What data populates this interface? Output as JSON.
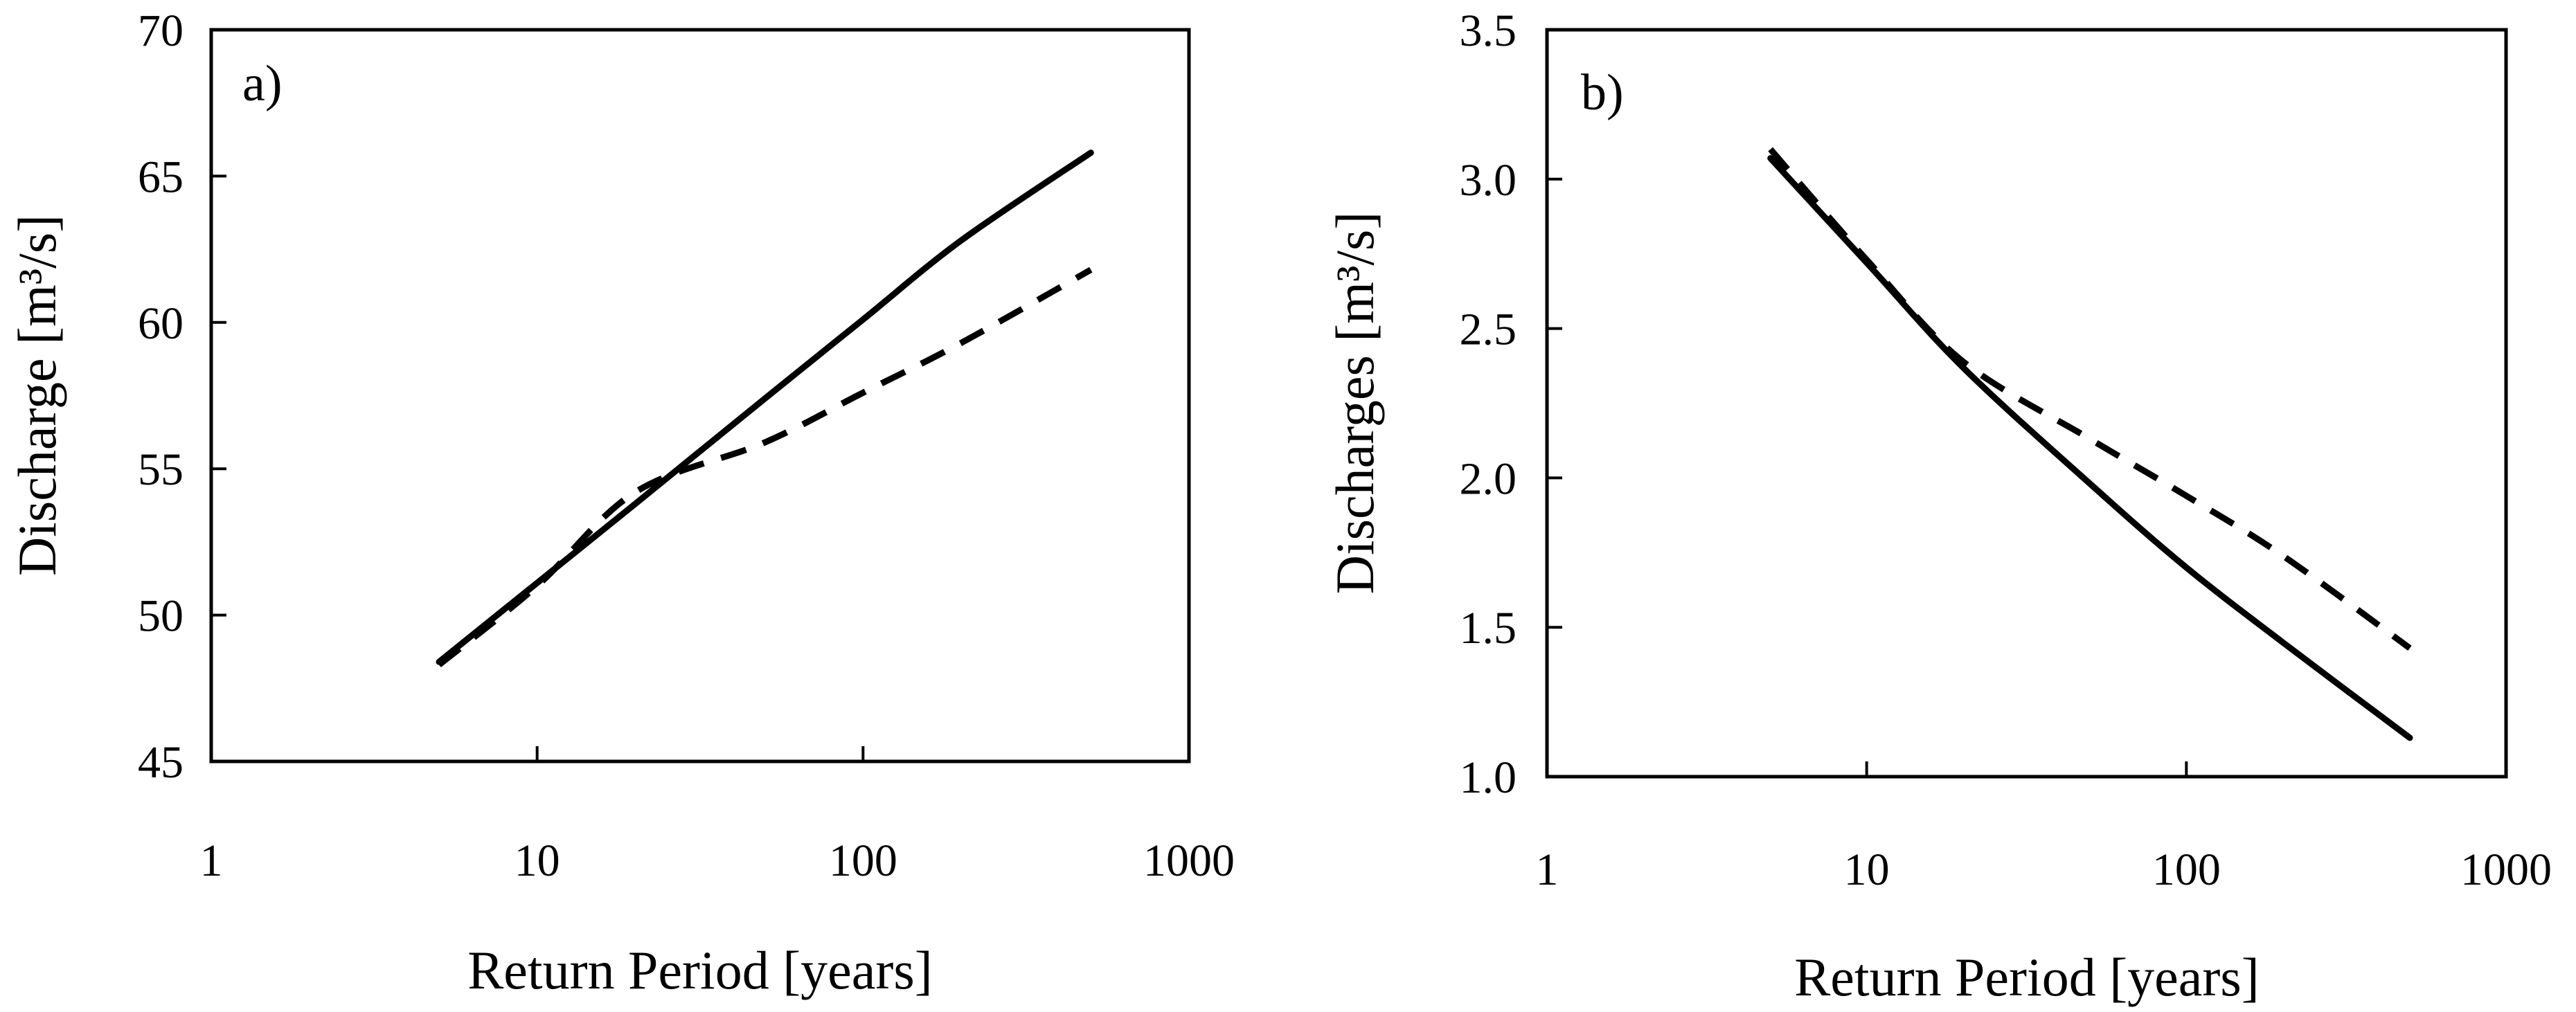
{
  "chart_data": [
    {
      "type": "line",
      "panel_label": "a)",
      "xlabel": "Return Period [years]",
      "ylabel": "Discharge [m³/s]",
      "xscale": "log",
      "xlim": [
        1,
        1000
      ],
      "ylim": [
        45,
        70
      ],
      "x_ticks": [
        1,
        10,
        100,
        1000
      ],
      "x_tick_labels": [
        "1",
        "10",
        "100",
        "1000"
      ],
      "y_ticks": [
        45,
        50,
        55,
        60,
        65,
        70
      ],
      "y_tick_labels": [
        "45",
        "50",
        "55",
        "60",
        "65",
        "70"
      ],
      "grid": false,
      "legend": "none",
      "series": [
        {
          "style": "solid",
          "color": "#000000",
          "x": [
            5,
            10,
            20,
            50,
            100,
            200,
            500
          ],
          "y": [
            48.4,
            51.1,
            53.8,
            57.4,
            60.1,
            62.8,
            65.8
          ]
        },
        {
          "style": "dashed",
          "color": "#000000",
          "x": [
            5,
            10,
            20,
            50,
            100,
            200,
            500
          ],
          "y": [
            48.3,
            51.0,
            54.2,
            55.9,
            57.6,
            59.3,
            61.8
          ]
        }
      ]
    },
    {
      "type": "line",
      "panel_label": "b)",
      "xlabel": "Return Period [years]",
      "ylabel": "Discharges [m³/s]",
      "xscale": "log",
      "xlim": [
        1,
        1000
      ],
      "ylim": [
        1.0,
        3.5
      ],
      "x_ticks": [
        1,
        10,
        100,
        1000
      ],
      "x_tick_labels": [
        "1",
        "10",
        "100",
        "1000"
      ],
      "y_ticks": [
        1.0,
        1.5,
        2.0,
        2.5,
        3.0,
        3.5
      ],
      "y_tick_labels": [
        "1.0",
        "1.5",
        "2.0",
        "2.5",
        "3.0",
        "3.5"
      ],
      "grid": false,
      "legend": "none",
      "series": [
        {
          "style": "solid",
          "color": "#000000",
          "x": [
            5,
            10,
            20,
            50,
            100,
            200,
            500
          ],
          "y": [
            3.07,
            2.72,
            2.37,
            1.98,
            1.7,
            1.45,
            1.13
          ]
        },
        {
          "style": "dashed",
          "color": "#000000",
          "x": [
            5,
            10,
            20,
            50,
            100,
            200,
            500
          ],
          "y": [
            3.1,
            2.73,
            2.39,
            2.13,
            1.94,
            1.74,
            1.43
          ]
        }
      ]
    }
  ]
}
